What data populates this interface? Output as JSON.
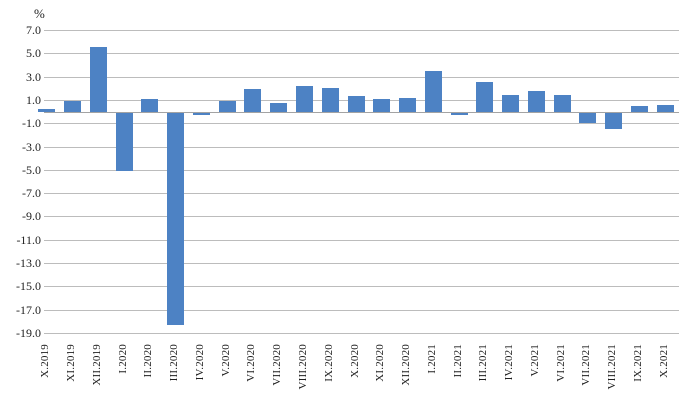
{
  "chart_data": {
    "type": "bar",
    "title": "",
    "unit_label": "%",
    "xlabel": "",
    "ylabel": "%",
    "categories": [
      "X.2019",
      "XI.2019",
      "XII.2019",
      "I.2020",
      "II.2020",
      "III.2020",
      "IV.2020",
      "V.2020",
      "VI.2020",
      "VII.2020",
      "VIII.2020",
      "IX.2020",
      "X.2020",
      "XI.2020",
      "XII.2020",
      "I.2021",
      "II.2021",
      "III.2021",
      "IV.2021",
      "V.2021",
      "VI.2021",
      "VII.2021",
      "VIII.2021",
      "IX.2021",
      "X.2021"
    ],
    "values": [
      0.2,
      0.9,
      5.5,
      -5.0,
      1.1,
      -18.2,
      -0.2,
      0.9,
      1.9,
      0.7,
      2.2,
      2.0,
      1.3,
      1.1,
      1.2,
      3.5,
      -0.2,
      2.5,
      1.4,
      1.8,
      1.4,
      -0.9,
      -1.4,
      0.5,
      0.6
    ],
    "ylim": [
      -19.0,
      7.0
    ],
    "ytick_step": 2.0,
    "yticks": [
      "7.0",
      "5.0",
      "3.0",
      "1.0",
      "-1.0",
      "-3.0",
      "-5.0",
      "-7.0",
      "-9.0",
      "-11.0",
      "-13.0",
      "-15.0",
      "-17.0",
      "-19.0"
    ],
    "grid": "horizontal-on",
    "legend_position": "none",
    "bar_color": "#4d82c4",
    "gridline_color": "#bcbcbc",
    "zero_line_color": "#a3a3a3",
    "text_color": "#1f1f1f"
  }
}
